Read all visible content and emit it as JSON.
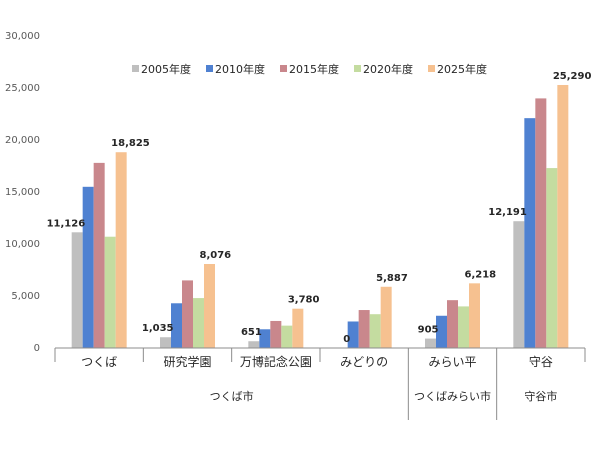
{
  "chart_data": {
    "type": "bar",
    "categories": [
      "つくば",
      "研究学園",
      "万博記念公園",
      "みどりの",
      "みらい平",
      "守谷"
    ],
    "groups": [
      {
        "label": "つくば市",
        "categories": [
          0,
          1,
          2,
          3
        ]
      },
      {
        "label": "つくばみらい市",
        "categories": [
          4
        ]
      },
      {
        "label": "守谷市",
        "categories": [
          5
        ]
      }
    ],
    "series": [
      {
        "name": "2005年度",
        "color": "#bfbfbf",
        "values": [
          11126,
          1035,
          651,
          0,
          905,
          12191
        ]
      },
      {
        "name": "2010年度",
        "color": "#4f81d1",
        "values": [
          15500,
          4300,
          1800,
          2550,
          3100,
          22100
        ]
      },
      {
        "name": "2015年度",
        "color": "#c9878c",
        "values": [
          17800,
          6500,
          2600,
          3650,
          4600,
          24000
        ]
      },
      {
        "name": "2020年度",
        "color": "#c4dca0",
        "values": [
          10700,
          4800,
          2150,
          3250,
          4000,
          17300
        ]
      },
      {
        "name": "2025年度",
        "color": "#f6c190",
        "values": [
          18825,
          8076,
          3780,
          5887,
          6218,
          25290
        ]
      }
    ],
    "data_labels": [
      {
        "category": 0,
        "series": 0,
        "text": "11,126"
      },
      {
        "category": 0,
        "series": 4,
        "text": "18,825"
      },
      {
        "category": 1,
        "series": 0,
        "text": "1,035"
      },
      {
        "category": 1,
        "series": 4,
        "text": "8,076"
      },
      {
        "category": 2,
        "series": 0,
        "text": "651"
      },
      {
        "category": 2,
        "series": 4,
        "text": "3,780"
      },
      {
        "category": 3,
        "series": 0,
        "text": "0"
      },
      {
        "category": 3,
        "series": 4,
        "text": "5,887"
      },
      {
        "category": 4,
        "series": 0,
        "text": "905"
      },
      {
        "category": 4,
        "series": 4,
        "text": "6,218"
      },
      {
        "category": 5,
        "series": 0,
        "text": "12,191"
      },
      {
        "category": 5,
        "series": 4,
        "text": "25,290"
      }
    ],
    "yticks": [
      0,
      5000,
      10000,
      15000,
      20000,
      25000,
      30000
    ],
    "ytick_labels": [
      "0",
      "5,000",
      "10,000",
      "15,000",
      "20,000",
      "25,000",
      "30,000"
    ],
    "ylim": [
      0,
      30000
    ],
    "grid": false,
    "legend_position": "top",
    "title": "",
    "xlabel": "",
    "ylabel": ""
  }
}
